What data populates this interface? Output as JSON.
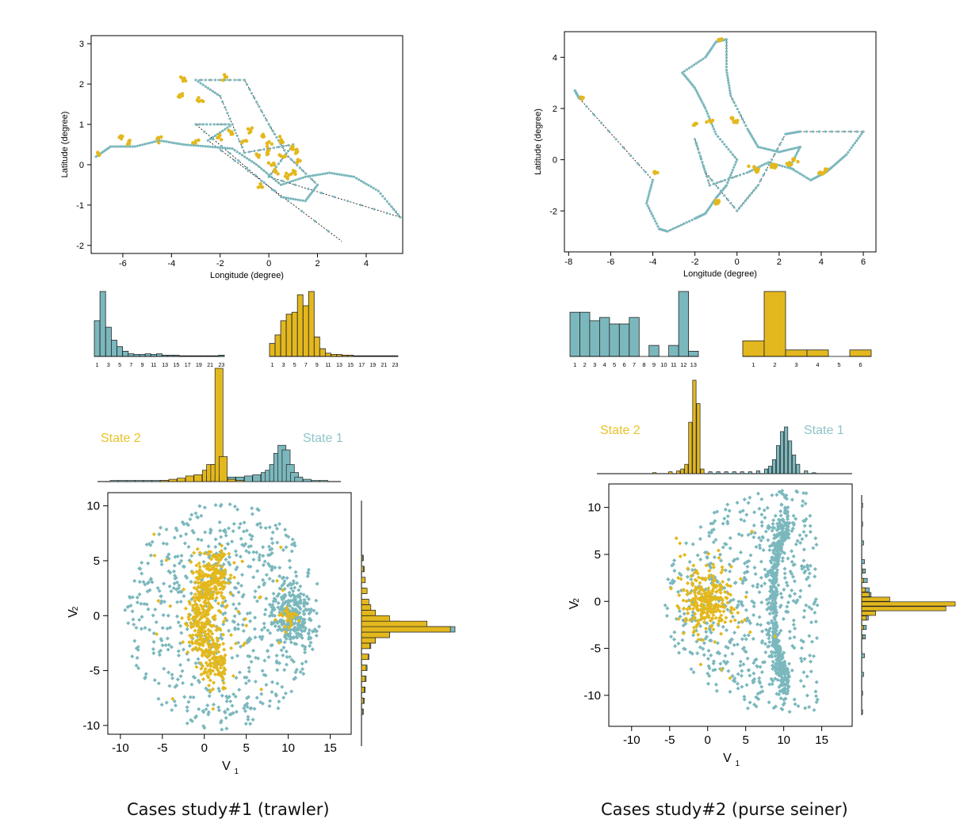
{
  "colors": {
    "state1": "#7bb8bd",
    "state2": "#e3b81e",
    "state1_label": "#8fc4c8",
    "state2_label": "#e8c22a",
    "axis": "#000000",
    "track": "#000000"
  },
  "captions": [
    "Cases study#1 (trawler)",
    "Cases study#2 (purse seiner)"
  ],
  "chart_data": [
    {
      "type": "scatter",
      "panel": "case1-track",
      "xlabel": "Longitude (degree)",
      "ylabel": "Latitude (degree)",
      "xlim": [
        -7.3,
        5.5
      ],
      "ylim": [
        -2.2,
        3.2
      ],
      "xticks": [
        -6,
        -4,
        -2,
        0,
        2,
        4
      ],
      "yticks": [
        -2,
        -1,
        0,
        1,
        2,
        3
      ],
      "series": [
        {
          "points": [
            [
              -7.1,
              0.2
            ],
            [
              -6.5,
              0.45
            ],
            [
              -5.5,
              0.45
            ],
            [
              -4.5,
              0.6
            ],
            [
              -3.5,
              0.5
            ],
            [
              -2.5,
              0.45
            ],
            [
              -1.5,
              0.4
            ],
            [
              -0.5,
              0.0
            ],
            [
              0.5,
              -0.5
            ],
            [
              1.5,
              -0.3
            ],
            [
              2.5,
              -0.2
            ],
            [
              3.5,
              -0.3
            ],
            [
              4.5,
              -0.65
            ],
            [
              5.4,
              -1.3
            ],
            [
              0.0,
              -0.3
            ],
            [
              1.0,
              0.5
            ],
            [
              -1.0,
              0.3
            ],
            [
              -2.0,
              1.7
            ],
            [
              -3.0,
              2.1
            ],
            [
              -1.0,
              2.1
            ],
            [
              0.0,
              1.0
            ],
            [
              0.8,
              0.2
            ],
            [
              2.0,
              -0.5
            ],
            [
              1.5,
              -0.9
            ],
            [
              0.5,
              -0.8
            ],
            [
              -3.0,
              1.0
            ],
            [
              -1.5,
              1.0
            ],
            [
              -2.5,
              0.6
            ],
            [
              3.0,
              -1.9
            ]
          ]
        },
        {
          "points": [
            [
              -7.0,
              0.25
            ],
            [
              -6.0,
              0.7
            ],
            [
              -5.8,
              0.55
            ],
            [
              -4.5,
              0.65
            ],
            [
              -3.5,
              2.15
            ],
            [
              -1.8,
              2.15
            ],
            [
              -3.6,
              1.7
            ],
            [
              -2.8,
              1.6
            ],
            [
              -3.0,
              0.55
            ],
            [
              -2.0,
              0.7
            ],
            [
              -1.5,
              0.8
            ],
            [
              -0.8,
              0.85
            ],
            [
              -0.3,
              0.7
            ],
            [
              0.0,
              0.5
            ],
            [
              0.5,
              0.6
            ],
            [
              1.0,
              0.4
            ],
            [
              1.2,
              0.1
            ],
            [
              -0.5,
              0.2
            ],
            [
              0.3,
              -0.2
            ],
            [
              0.8,
              -0.3
            ],
            [
              1.0,
              -0.2
            ],
            [
              -0.3,
              -0.5
            ],
            [
              0.1,
              0.0
            ],
            [
              -1.0,
              0.6
            ],
            [
              0.6,
              0.2
            ],
            [
              -0.1,
              0.3
            ],
            [
              1.1,
              0.35
            ]
          ]
        }
      ]
    },
    {
      "type": "scatter",
      "panel": "case2-track",
      "xlabel": "Longitude (degree)",
      "ylabel": "Latitude (degree)",
      "xlim": [
        -8.2,
        6.6
      ],
      "ylim": [
        -3.6,
        5.0
      ],
      "xticks": [
        -8,
        -6,
        -4,
        -2,
        0,
        2,
        4,
        6
      ],
      "yticks": [
        -2,
        0,
        2,
        4
      ],
      "series": [
        {
          "points": [
            [
              -7.7,
              2.7
            ],
            [
              -7.5,
              2.4
            ],
            [
              -4.0,
              -0.8
            ],
            [
              -4.3,
              -1.7
            ],
            [
              -3.7,
              -2.7
            ],
            [
              -3.3,
              -2.8
            ],
            [
              -2.0,
              -2.3
            ],
            [
              -1.5,
              -2.1
            ],
            [
              -1.0,
              -1.5
            ],
            [
              -0.5,
              -1.0
            ],
            [
              0.0,
              0.0
            ],
            [
              -1.0,
              1.0
            ],
            [
              -1.5,
              2.0
            ],
            [
              -2.0,
              2.8
            ],
            [
              -2.6,
              3.4
            ],
            [
              -1.5,
              4.0
            ],
            [
              -1.0,
              4.6
            ],
            [
              -0.5,
              4.7
            ],
            [
              -0.5,
              3.5
            ],
            [
              -0.3,
              2.5
            ],
            [
              0.5,
              1.2
            ],
            [
              1.0,
              0.5
            ],
            [
              2.0,
              0.3
            ],
            [
              3.0,
              0.5
            ],
            [
              2.5,
              -0.3
            ],
            [
              3.5,
              -0.8
            ],
            [
              4.2,
              -0.5
            ],
            [
              4.5,
              -0.3
            ],
            [
              5.2,
              0.2
            ],
            [
              6.0,
              1.1
            ],
            [
              3.0,
              1.1
            ],
            [
              2.3,
              1.0
            ],
            [
              1.0,
              -1.0
            ],
            [
              0.0,
              -2.0
            ],
            [
              -1.5,
              -0.5
            ],
            [
              -2.0,
              0.8
            ],
            [
              -1.3,
              -1.0
            ],
            [
              0.5,
              -0.5
            ],
            [
              1.5,
              -0.1
            ],
            [
              2.8,
              -0.4
            ]
          ]
        },
        {
          "points": [
            [
              -7.4,
              2.4
            ],
            [
              -0.8,
              4.7
            ],
            [
              -2.0,
              1.4
            ],
            [
              -0.2,
              1.6
            ],
            [
              0.0,
              1.5
            ],
            [
              -0.9,
              -1.6
            ],
            [
              -1.0,
              -1.7
            ],
            [
              -3.9,
              -0.5
            ],
            [
              0.8,
              -0.3
            ],
            [
              1.0,
              -0.4
            ],
            [
              1.7,
              -0.2
            ],
            [
              1.8,
              -0.3
            ],
            [
              2.7,
              0.0
            ],
            [
              2.5,
              -0.2
            ],
            [
              4.0,
              -0.5
            ],
            [
              4.2,
              -0.4
            ],
            [
              -1.3,
              1.5
            ]
          ]
        }
      ]
    },
    {
      "type": "bar",
      "panel": "case1-hist-state1",
      "categories": [
        1,
        2,
        3,
        4,
        5,
        6,
        7,
        8,
        9,
        10,
        11,
        12,
        13,
        14,
        15,
        16,
        17,
        18,
        19,
        20,
        21,
        22,
        23
      ],
      "ticks": [
        "1",
        "3",
        "5",
        "7",
        "9",
        "11",
        "13",
        "15",
        "17",
        "19",
        "21",
        "23"
      ],
      "values": [
        0.55,
        1.0,
        0.45,
        0.25,
        0.15,
        0.08,
        0.04,
        0.03,
        0.03,
        0.04,
        0.03,
        0.04,
        0.02,
        0.02,
        0.02,
        0.01,
        0.01,
        0.01,
        0.01,
        0.01,
        0.01,
        0.01,
        0.02
      ]
    },
    {
      "type": "bar",
      "panel": "case1-hist-state2",
      "categories": [
        1,
        2,
        3,
        4,
        5,
        6,
        7,
        8,
        9,
        10,
        11,
        12,
        13,
        14,
        15,
        16,
        17,
        18,
        19,
        20,
        21,
        22,
        23
      ],
      "ticks": [
        "1",
        "3",
        "5",
        "7",
        "9",
        "11",
        "13",
        "15",
        "17",
        "19",
        "21",
        "23"
      ],
      "values": [
        0.2,
        0.33,
        0.55,
        0.65,
        0.68,
        0.95,
        0.78,
        1.0,
        0.3,
        0.12,
        0.05,
        0.03,
        0.03,
        0.02,
        0.02,
        0.01,
        0.01,
        0.01,
        0.01,
        0.01,
        0.01,
        0.01,
        0.01
      ]
    },
    {
      "type": "bar",
      "panel": "case2-hist-state1",
      "categories": [
        "1",
        "2",
        "3",
        "4",
        "5",
        "6",
        "7",
        "8",
        "9",
        "10",
        "11",
        "12",
        "13"
      ],
      "values": [
        0.68,
        0.68,
        0.55,
        0.6,
        0.5,
        0.5,
        0.6,
        0.0,
        0.17,
        0.0,
        0.17,
        1.0,
        0.08
      ]
    },
    {
      "type": "bar",
      "panel": "case2-hist-state2",
      "categories": [
        "1",
        "2",
        "3",
        "4",
        "5",
        "6"
      ],
      "values": [
        0.24,
        1.0,
        0.1,
        0.1,
        0.0,
        0.1
      ]
    },
    {
      "type": "scatter",
      "panel": "case1-v1v2",
      "xlabel": "V",
      "xlabel_sub": "1",
      "ylabel": "V",
      "ylabel_sub": "2",
      "xlim": [
        -11.5,
        17.5
      ],
      "ylim": [
        -10.8,
        11.2
      ],
      "xticks": [
        -10,
        -5,
        0,
        5,
        10,
        15
      ],
      "yticks": [
        -10,
        -5,
        0,
        5,
        10
      ],
      "state_labels": [
        "State 2",
        "State 1"
      ],
      "top_hist": {
        "bins": [
          -10,
          -9,
          -8,
          -7,
          -6,
          -5,
          -4,
          -3,
          -2,
          -1,
          0,
          1,
          1.5,
          2,
          2.5,
          3,
          4,
          5,
          6,
          7,
          8,
          8.5,
          9,
          9.5,
          10,
          10.5,
          11,
          11.5,
          12,
          13,
          14,
          15
        ],
        "state1": [
          0.01,
          0.01,
          0.01,
          0.01,
          0.01,
          0.01,
          0.01,
          0.01,
          0.02,
          0.02,
          0.03,
          0.04,
          0.05,
          0.06,
          0.05,
          0.04,
          0.04,
          0.04,
          0.05,
          0.06,
          0.08,
          0.1,
          0.15,
          0.25,
          0.32,
          0.28,
          0.15,
          0.08,
          0.04,
          0.02,
          0.01,
          0.01
        ],
        "state2": [
          0.0,
          0.0,
          0.0,
          0.0,
          0.0,
          0.0,
          0.01,
          0.02,
          0.03,
          0.05,
          0.06,
          0.1,
          0.15,
          0.15,
          1.0,
          0.22,
          0.02,
          0.01,
          0.0,
          0.0,
          0.0,
          0.0,
          0.0,
          0.0,
          0.0,
          0.0,
          0.0,
          0.0,
          0.0,
          0.0,
          0.0,
          0.0
        ]
      },
      "right_hist": {
        "bins": [
          -9,
          -8,
          -7,
          -6,
          -5,
          -4,
          -3,
          -2.5,
          -2,
          -1.5,
          -1,
          -0.5,
          0,
          0.5,
          1,
          2,
          3,
          4,
          5
        ],
        "state1": [
          0.02,
          0.03,
          0.04,
          0.05,
          0.06,
          0.08,
          0.1,
          0.15,
          0.3,
          1.0,
          0.4,
          0.2,
          0.12,
          0.09,
          0.07,
          0.05,
          0.04,
          0.03,
          0.02
        ],
        "state2": [
          0.01,
          0.02,
          0.03,
          0.04,
          0.05,
          0.07,
          0.09,
          0.15,
          0.3,
          0.95,
          0.7,
          0.3,
          0.15,
          0.1,
          0.08,
          0.06,
          0.04,
          0.02,
          0.01
        ]
      }
    },
    {
      "type": "scatter",
      "panel": "case2-v1v2",
      "xlabel": "V",
      "xlabel_sub": "1",
      "ylabel": "V",
      "ylabel_sub": "2",
      "xlim": [
        -13,
        19
      ],
      "ylim": [
        -13.3,
        12.5
      ],
      "xticks": [
        -10,
        -5,
        0,
        5,
        10,
        15
      ],
      "yticks": [
        -10,
        -5,
        0,
        5,
        10
      ],
      "state_labels": [
        "State 2",
        "State 1"
      ],
      "top_hist": {
        "bins": [
          -8,
          -6,
          -4,
          -3,
          -2.5,
          -2,
          -1.5,
          -1,
          -0.5,
          0,
          1,
          2,
          3,
          4,
          5,
          6,
          7,
          8,
          8.5,
          9,
          9.5,
          10,
          10.5,
          11,
          11.5,
          12,
          13,
          14
        ],
        "state1": [
          0.0,
          0.01,
          0.01,
          0.01,
          0.01,
          0.01,
          0.01,
          0.01,
          0.02,
          0.02,
          0.02,
          0.02,
          0.02,
          0.02,
          0.02,
          0.02,
          0.03,
          0.05,
          0.08,
          0.15,
          0.3,
          0.45,
          0.5,
          0.35,
          0.2,
          0.1,
          0.03,
          0.01
        ],
        "state2": [
          0.0,
          0.01,
          0.02,
          0.03,
          0.05,
          0.1,
          0.55,
          1.0,
          0.75,
          0.05,
          0.0,
          0.0,
          0.0,
          0.0,
          0.0,
          0.0,
          0.0,
          0.0,
          0.0,
          0.0,
          0.0,
          0.0,
          0.0,
          0.0,
          0.0,
          0.0,
          0.0,
          0.0
        ]
      },
      "right_hist": {
        "bins": [
          -12,
          -10,
          -8,
          -6,
          -4,
          -3,
          -2,
          -1.5,
          -1,
          -0.5,
          0,
          0.5,
          1,
          2,
          3,
          4,
          6,
          8,
          10
        ],
        "state1": [
          0.01,
          0.01,
          0.02,
          0.03,
          0.04,
          0.05,
          0.07,
          0.1,
          0.12,
          0.15,
          0.12,
          0.1,
          0.08,
          0.06,
          0.04,
          0.03,
          0.02,
          0.01,
          0.01
        ],
        "state2": [
          0.0,
          0.0,
          0.0,
          0.0,
          0.01,
          0.02,
          0.05,
          0.15,
          0.9,
          1.0,
          0.3,
          0.08,
          0.04,
          0.02,
          0.01,
          0.0,
          0.0,
          0.0,
          0.0
        ]
      }
    }
  ]
}
